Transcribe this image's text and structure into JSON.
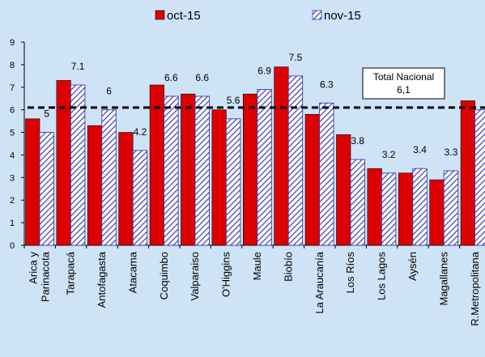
{
  "chart_data": {
    "type": "bar",
    "categories": [
      "Arica y Parinacota",
      "Tarapacá",
      "Antofagasta",
      "Atacama",
      "Coquimbo",
      "Valparaiso",
      "O'Higgins",
      "Maule",
      "Biobío",
      "La Araucanía",
      "Los Ríos",
      "Los Lagos",
      "Aysén",
      "Magallanes",
      "R.Metropolitana"
    ],
    "series": [
      {
        "name": "oct-15",
        "color": "#dd0000",
        "pattern": "solid",
        "values": [
          5.6,
          7.3,
          5.3,
          5.0,
          7.1,
          6.7,
          6.0,
          6.7,
          7.9,
          5.8,
          4.9,
          3.4,
          3.2,
          2.9,
          6.4
        ]
      },
      {
        "name": "nov-15",
        "color": "#3b3bb0",
        "pattern": "hatched",
        "values": [
          5.0,
          7.1,
          6.0,
          4.2,
          6.6,
          6.6,
          5.6,
          6.9,
          7.5,
          6.3,
          3.8,
          3.2,
          3.4,
          3.3,
          6.0
        ]
      }
    ],
    "data_labels": [
      "5",
      "7.1",
      "6",
      "4.2",
      "6.6",
      "6.6",
      "5.6",
      "6.9",
      "7.5",
      "6.3",
      "3.8",
      "3.2",
      "3.4",
      "3.3",
      ""
    ],
    "yticks": [
      "0",
      "1",
      "2",
      "3",
      "4",
      "5",
      "6",
      "7",
      "8",
      "9"
    ],
    "ylim": [
      0,
      9
    ],
    "reference_line": {
      "value": 6.1,
      "label_line1": "Total Nacional",
      "label_line2": "6,1"
    },
    "legend_position": "top-center",
    "grid": false
  }
}
